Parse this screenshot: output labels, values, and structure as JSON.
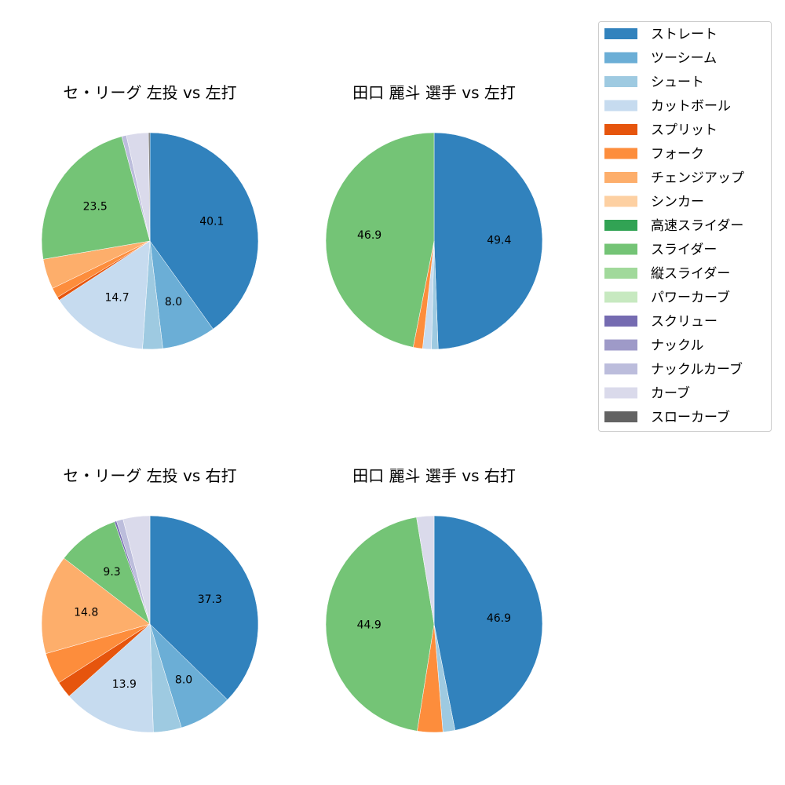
{
  "legend": {
    "placement": "top-right",
    "entries": [
      {
        "name": "ストレート",
        "color": "#3182bd"
      },
      {
        "name": "ツーシーム",
        "color": "#6baed6"
      },
      {
        "name": "シュート",
        "color": "#9ecae1"
      },
      {
        "name": "カットボール",
        "color": "#c6dbef"
      },
      {
        "name": "スプリット",
        "color": "#e6550d"
      },
      {
        "name": "フォーク",
        "color": "#fd8d3c"
      },
      {
        "name": "チェンジアップ",
        "color": "#fdae6b"
      },
      {
        "name": "シンカー",
        "color": "#fdd0a2"
      },
      {
        "name": "高速スライダー",
        "color": "#31a354"
      },
      {
        "name": "スライダー",
        "color": "#74c476"
      },
      {
        "name": "縦スライダー",
        "color": "#a1d99b"
      },
      {
        "name": "パワーカーブ",
        "color": "#c7e9c0"
      },
      {
        "name": "スクリュー",
        "color": "#756bb1"
      },
      {
        "name": "ナックル",
        "color": "#9e9ac8"
      },
      {
        "name": "ナックルカーブ",
        "color": "#bcbddc"
      },
      {
        "name": "カーブ",
        "color": "#dadaeb"
      },
      {
        "name": "スローカーブ",
        "color": "#636363"
      }
    ]
  },
  "chart_data": [
    {
      "type": "pie",
      "title": "セ・リーグ 左投 vs 左打",
      "start_angle": 90,
      "direction": "clockwise",
      "slices": [
        {
          "name": "ストレート",
          "value": 40.1
        },
        {
          "name": "ツーシーム",
          "value": 8.0
        },
        {
          "name": "シュート",
          "value": 3.0
        },
        {
          "name": "カットボール",
          "value": 14.7
        },
        {
          "name": "スプリット",
          "value": 0.5
        },
        {
          "name": "フォーク",
          "value": 1.5
        },
        {
          "name": "チェンジアップ",
          "value": 4.5
        },
        {
          "name": "スライダー",
          "value": 23.5
        },
        {
          "name": "ナックルカーブ",
          "value": 0.7
        },
        {
          "name": "カーブ",
          "value": 3.3
        },
        {
          "name": "スローカーブ",
          "value": 0.2
        }
      ]
    },
    {
      "type": "pie",
      "title": "田口 麗斗 選手 vs 左打",
      "start_angle": 90,
      "direction": "clockwise",
      "slices": [
        {
          "name": "ストレート",
          "value": 49.4
        },
        {
          "name": "シュート",
          "value": 1.0
        },
        {
          "name": "カットボール",
          "value": 1.3
        },
        {
          "name": "フォーク",
          "value": 1.4
        },
        {
          "name": "スライダー",
          "value": 46.9
        }
      ]
    },
    {
      "type": "pie",
      "title": "セ・リーグ 左投 vs 右打",
      "start_angle": 90,
      "direction": "clockwise",
      "slices": [
        {
          "name": "ストレート",
          "value": 37.3
        },
        {
          "name": "ツーシーム",
          "value": 8.0
        },
        {
          "name": "シュート",
          "value": 4.2
        },
        {
          "name": "カットボール",
          "value": 13.9
        },
        {
          "name": "スプリット",
          "value": 2.5
        },
        {
          "name": "フォーク",
          "value": 4.7
        },
        {
          "name": "チェンジアップ",
          "value": 14.8
        },
        {
          "name": "スライダー",
          "value": 9.3
        },
        {
          "name": "スクリュー",
          "value": 0.3
        },
        {
          "name": "ナックルカーブ",
          "value": 1.0
        },
        {
          "name": "カーブ",
          "value": 4.0
        }
      ]
    },
    {
      "type": "pie",
      "title": "田口 麗斗 選手 vs 右打",
      "start_angle": 90,
      "direction": "clockwise",
      "slices": [
        {
          "name": "ストレート",
          "value": 46.9
        },
        {
          "name": "シュート",
          "value": 1.8
        },
        {
          "name": "フォーク",
          "value": 3.8
        },
        {
          "name": "スライダー",
          "value": 44.9
        },
        {
          "name": "カーブ",
          "value": 2.6
        }
      ]
    }
  ]
}
